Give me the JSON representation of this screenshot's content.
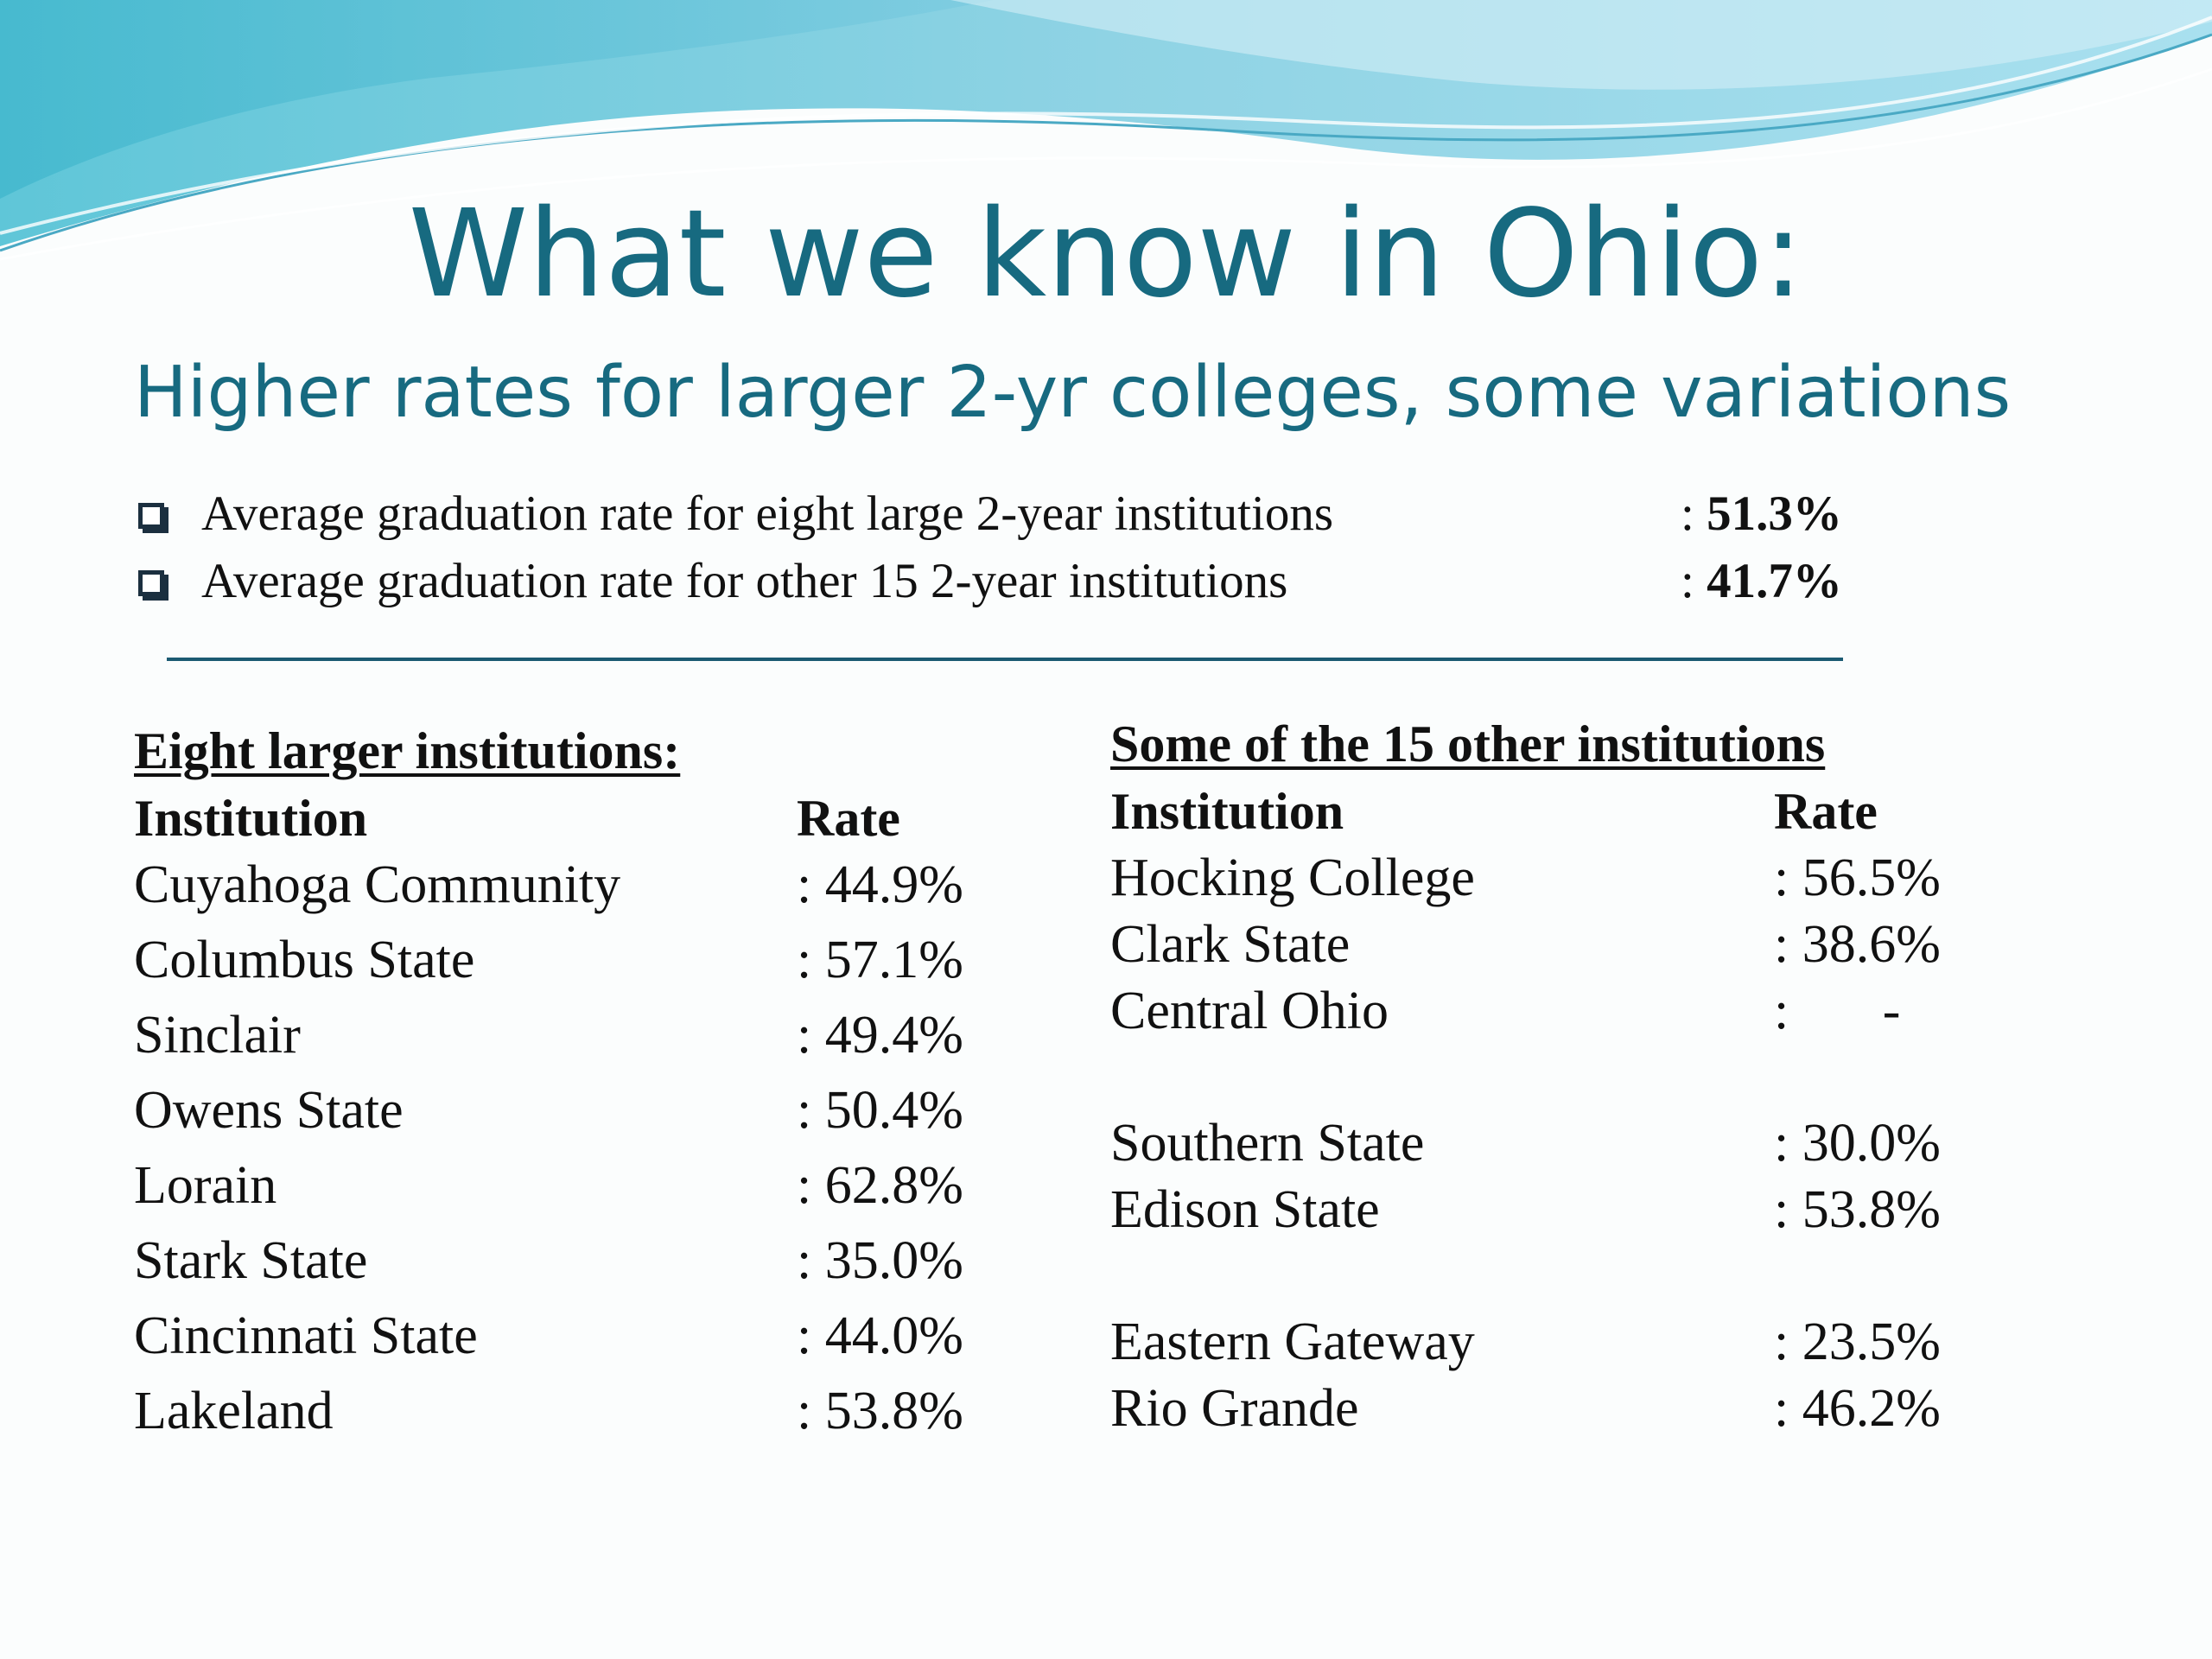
{
  "title": "What we know in Ohio:",
  "subtitle": "Higher rates for larger 2-yr colleges, some variations",
  "bullets": [
    {
      "text": "Average graduation rate for eight large 2-year institutions",
      "prefix": ":",
      "value": "51.3%"
    },
    {
      "text": "Average graduation rate for other 15 2-year institutions",
      "prefix": ":",
      "value": "41.7%"
    }
  ],
  "left_table": {
    "heading": "Eight larger institutions:",
    "col_institution": "Institution",
    "col_rate": "Rate",
    "rows": [
      {
        "name": "Cuyahoga Community",
        "rate": ": 44.9%"
      },
      {
        "name": "Columbus State",
        "rate": ": 57.1%"
      },
      {
        "name": "Sinclair",
        "rate": ": 49.4%"
      },
      {
        "name": "Owens State",
        "rate": ": 50.4%"
      },
      {
        "name": "Lorain",
        "rate": ": 62.8%"
      },
      {
        "name": "Stark State",
        "rate": ": 35.0%"
      },
      {
        "name": "Cincinnati State",
        "rate": ": 44.0%"
      },
      {
        "name": "Lakeland",
        "rate": ": 53.8%"
      }
    ]
  },
  "right_table": {
    "heading": "Some of the 15 other institutions",
    "col_institution": "Institution",
    "col_rate": "Rate",
    "rows": [
      {
        "name": "Hocking College",
        "rate": ": 56.5%"
      },
      {
        "name": "Clark State",
        "rate": ": 38.6%"
      },
      {
        "name": "Central Ohio",
        "rate": ":       -"
      },
      {
        "name": "Southern State",
        "rate": ": 30.0%"
      },
      {
        "name": "Edison State",
        "rate": ": 53.8%"
      },
      {
        "name": "Eastern Gateway",
        "rate": ": 23.5%"
      },
      {
        "name": "Rio Grande",
        "rate": ": 46.2%"
      }
    ]
  }
}
